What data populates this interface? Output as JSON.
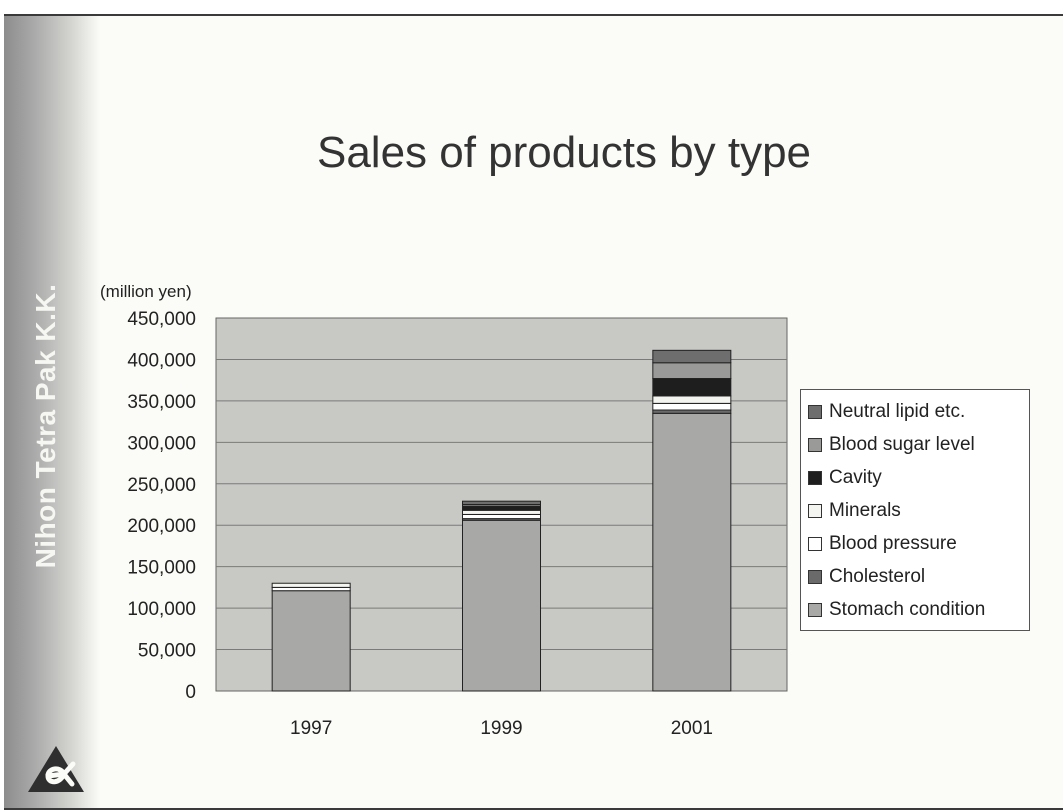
{
  "slide": {
    "title": "Sales of products by type",
    "company": "Nihon Tetra Pak K.K."
  },
  "icons": {
    "logo": "alpha-triangle-logo"
  },
  "chart_data": {
    "type": "bar",
    "stacked": true,
    "title": "Sales of products by type",
    "ylabel": "(million yen)",
    "xlabel": "",
    "categories": [
      "1997",
      "1999",
      "2001"
    ],
    "ylim": [
      0,
      450000
    ],
    "yticks": [
      0,
      50000,
      100000,
      150000,
      200000,
      250000,
      300000,
      350000,
      400000,
      450000
    ],
    "ytick_labels": [
      "0",
      "50,000",
      "100,000",
      "150,000",
      "200,000",
      "250,000",
      "300,000",
      "350,000",
      "400,000",
      "450,000"
    ],
    "grid": true,
    "legend_position": "right",
    "series": [
      {
        "name": "Stomach condition",
        "values": [
          121000,
          206000,
          335000
        ],
        "color": "#a8a8a6"
      },
      {
        "name": "Cholesterol",
        "values": [
          0,
          2000,
          4000
        ],
        "color": "#6a6a6a"
      },
      {
        "name": "Blood pressure",
        "values": [
          4000,
          5000,
          8000
        ],
        "color": "#ffffff"
      },
      {
        "name": "Minerals",
        "values": [
          5000,
          5000,
          9000
        ],
        "color": "#f4f4f0"
      },
      {
        "name": "Cavity",
        "values": [
          0,
          5000,
          21000
        ],
        "color": "#1e1e1e"
      },
      {
        "name": "Blood sugar level",
        "values": [
          0,
          2000,
          19000
        ],
        "color": "#9a9a98"
      },
      {
        "name": "Neutral lipid etc.",
        "values": [
          0,
          4000,
          15000
        ],
        "color": "#6e6e6e"
      }
    ]
  }
}
